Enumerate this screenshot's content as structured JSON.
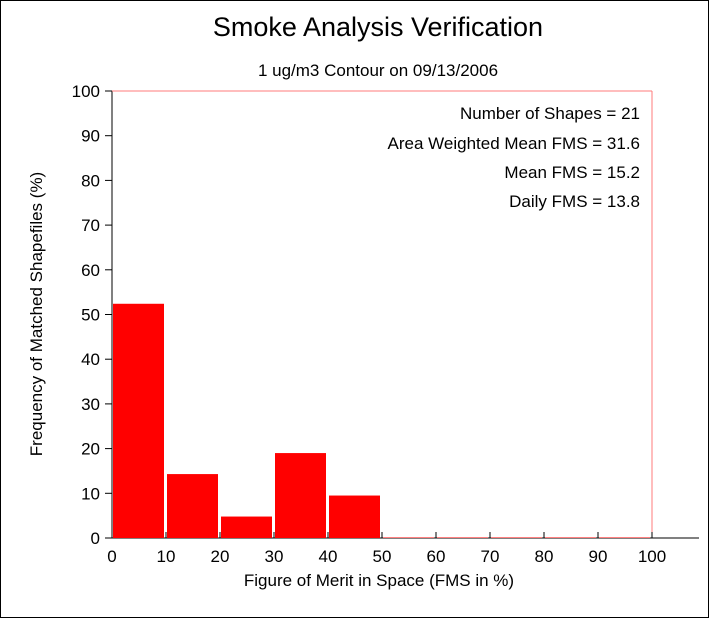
{
  "chart_data": {
    "type": "bar",
    "title": "Smoke Analysis Verification",
    "subtitle": "1 ug/m3 Contour on 09/13/2006",
    "xlabel": "Figure of Merit in Space (FMS in %)",
    "ylabel": "Frequency of Matched Shapefiles (%)",
    "xlim": [
      0,
      100
    ],
    "ylim": [
      0,
      100
    ],
    "x_ticks": [
      "0",
      "10",
      "20",
      "30",
      "40",
      "50",
      "60",
      "70",
      "80",
      "90",
      "100"
    ],
    "y_ticks": [
      "0",
      "10",
      "20",
      "30",
      "40",
      "50",
      "60",
      "70",
      "80",
      "90",
      "100"
    ],
    "bins": [
      {
        "start": 0,
        "end": 10,
        "value": 52.4
      },
      {
        "start": 10,
        "end": 20,
        "value": 14.3
      },
      {
        "start": 20,
        "end": 30,
        "value": 4.8
      },
      {
        "start": 30,
        "end": 40,
        "value": 19.0
      },
      {
        "start": 40,
        "end": 50,
        "value": 9.5
      },
      {
        "start": 50,
        "end": 60,
        "value": 0
      },
      {
        "start": 60,
        "end": 70,
        "value": 0
      },
      {
        "start": 70,
        "end": 80,
        "value": 0
      },
      {
        "start": 80,
        "end": 90,
        "value": 0
      },
      {
        "start": 90,
        "end": 100,
        "value": 0
      }
    ],
    "annotations": [
      "Number of Shapes = 21",
      "Area Weighted Mean FMS = 31.6",
      "Mean FMS = 15.2",
      "Daily FMS = 13.8"
    ],
    "bar_color": "#ff0000",
    "grid": false
  }
}
